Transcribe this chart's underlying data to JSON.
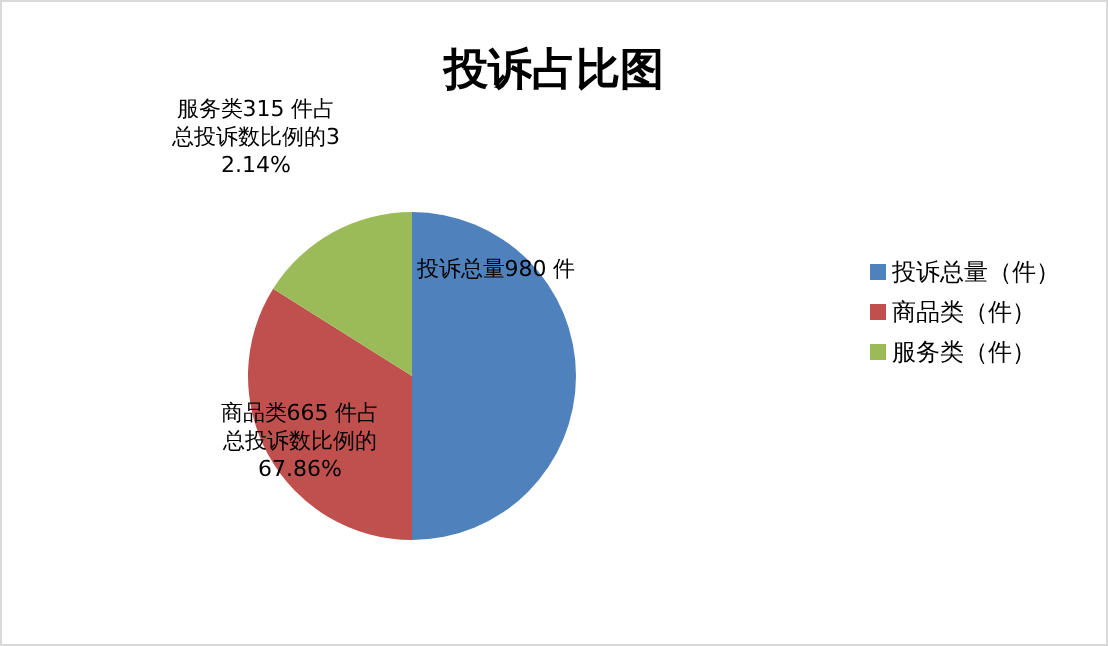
{
  "chart_data": {
    "type": "pie",
    "title": "投诉占比图",
    "categories": [
      "投诉总量（件）",
      "商品类（件）",
      "服务类（件）"
    ],
    "values": [
      980,
      665,
      315
    ],
    "colors": [
      "#4f81bd",
      "#c0504d",
      "#9bbb59"
    ],
    "value_labels": [
      "投诉总量980 件",
      "商品类665 件占总投诉数比例的67.86%",
      "服务类315 件占总投诉数比例的32.14%"
    ],
    "legend": "right"
  }
}
